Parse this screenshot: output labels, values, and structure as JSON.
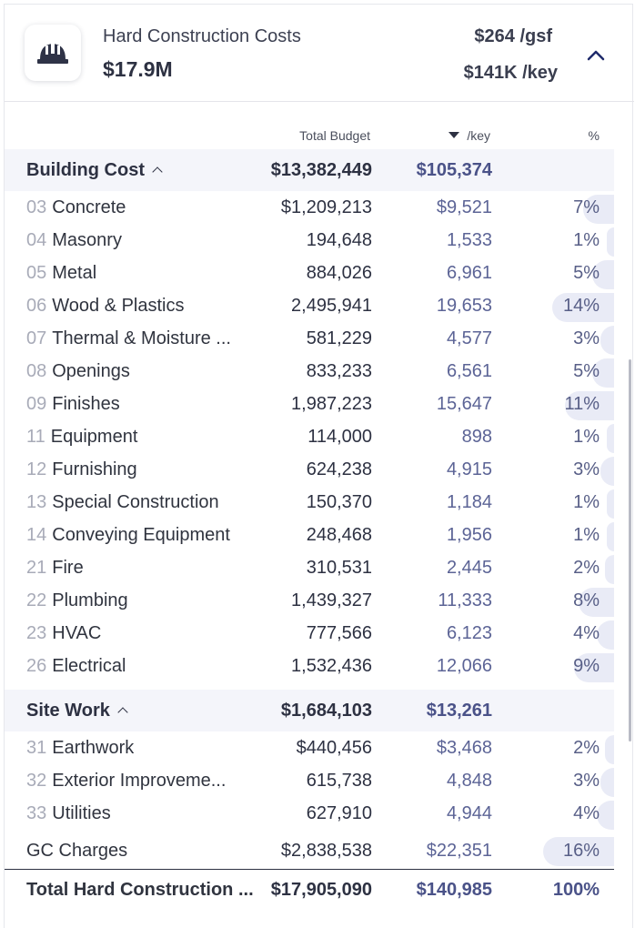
{
  "header": {
    "title": "Hard Construction Costs",
    "amount": "$17.9M",
    "per_gsf": "$264 /gsf",
    "per_key": "$141K /key",
    "icon": "hard-hat-icon"
  },
  "columns": {
    "total_budget": "Total Budget",
    "per_key": "/key",
    "percent": "%"
  },
  "groups": [
    {
      "name": "Building Cost",
      "total_budget": "$13,382,449",
      "per_key": "$105,374",
      "items": [
        {
          "code": "03",
          "name": "Concrete",
          "budget": "$1,209,213",
          "per_key": "$9,521",
          "pct": "7%",
          "pct_value": 7
        },
        {
          "code": "04",
          "name": "Masonry",
          "budget": "194,648",
          "per_key": "1,533",
          "pct": "1%",
          "pct_value": 1
        },
        {
          "code": "05",
          "name": "Metal",
          "budget": "884,026",
          "per_key": "6,961",
          "pct": "5%",
          "pct_value": 5
        },
        {
          "code": "06",
          "name": "Wood & Plastics",
          "budget": "2,495,941",
          "per_key": "19,653",
          "pct": "14%",
          "pct_value": 14
        },
        {
          "code": "07",
          "name": "Thermal & Moisture ...",
          "budget": "581,229",
          "per_key": "4,577",
          "pct": "3%",
          "pct_value": 3
        },
        {
          "code": "08",
          "name": "Openings",
          "budget": "833,233",
          "per_key": "6,561",
          "pct": "5%",
          "pct_value": 5
        },
        {
          "code": "09",
          "name": "Finishes",
          "budget": "1,987,223",
          "per_key": "15,647",
          "pct": "11%",
          "pct_value": 11
        },
        {
          "code": "11",
          "name": "Equipment",
          "budget": "114,000",
          "per_key": "898",
          "pct": "1%",
          "pct_value": 1
        },
        {
          "code": "12",
          "name": "Furnishing",
          "budget": "624,238",
          "per_key": "4,915",
          "pct": "3%",
          "pct_value": 3
        },
        {
          "code": "13",
          "name": "Special Construction",
          "budget": "150,370",
          "per_key": "1,184",
          "pct": "1%",
          "pct_value": 1
        },
        {
          "code": "14",
          "name": "Conveying Equipment",
          "budget": "248,468",
          "per_key": "1,956",
          "pct": "1%",
          "pct_value": 1
        },
        {
          "code": "21",
          "name": "Fire",
          "budget": "310,531",
          "per_key": "2,445",
          "pct": "2%",
          "pct_value": 2
        },
        {
          "code": "22",
          "name": "Plumbing",
          "budget": "1,439,327",
          "per_key": "11,333",
          "pct": "8%",
          "pct_value": 8
        },
        {
          "code": "23",
          "name": "HVAC",
          "budget": "777,566",
          "per_key": "6,123",
          "pct": "4%",
          "pct_value": 4
        },
        {
          "code": "26",
          "name": "Electrical",
          "budget": "1,532,436",
          "per_key": "12,066",
          "pct": "9%",
          "pct_value": 9
        }
      ]
    },
    {
      "name": "Site Work",
      "total_budget": "$1,684,103",
      "per_key": "$13,261",
      "items": [
        {
          "code": "31",
          "name": "Earthwork",
          "budget": "$440,456",
          "per_key": "$3,468",
          "pct": "2%",
          "pct_value": 2
        },
        {
          "code": "32",
          "name": "Exterior Improveme...",
          "budget": "615,738",
          "per_key": "4,848",
          "pct": "3%",
          "pct_value": 3
        },
        {
          "code": "33",
          "name": "Utilities",
          "budget": "627,910",
          "per_key": "4,944",
          "pct": "4%",
          "pct_value": 4
        }
      ]
    }
  ],
  "gc_charges": {
    "name": "GC Charges",
    "budget": "$2,838,538",
    "per_key": "$22,351",
    "pct": "16%",
    "pct_value": 16
  },
  "total": {
    "name": "Total Hard Construction ...",
    "budget": "$17,905,090",
    "per_key": "$140,985",
    "pct": "100%"
  }
}
